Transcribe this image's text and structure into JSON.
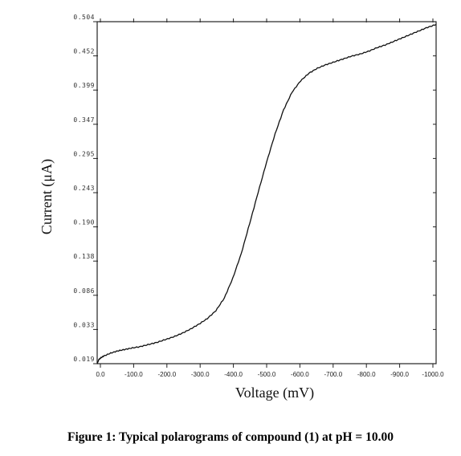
{
  "caption": "Figure 1: Typical polarograms of compound (1) at pH = 10.00",
  "chart_data": {
    "type": "line",
    "xlabel": "Voltage (mV)",
    "ylabel": "Current (μA)",
    "xlim": [
      0,
      -1000
    ],
    "ylim": [
      0.019,
      0.504
    ],
    "x_ticks": [
      "0.0",
      "-100.0",
      "-200.0",
      "-300.0",
      "-400.0",
      "-500.0",
      "-600.0",
      "-700.0",
      "-800.0",
      "-900.0",
      "-1000.0"
    ],
    "y_ticks": [
      "0.504",
      "0.452",
      "0.399",
      "0.347",
      "0.295",
      "0.243",
      "0.190",
      "0.138",
      "0.086",
      "0.033",
      "0.019"
    ],
    "grid": false,
    "series": [
      {
        "color": "#111111",
        "x": [
          0,
          -5,
          -10,
          -20,
          -40,
          -60,
          -80,
          -100,
          -125,
          -150,
          -175,
          -200,
          -225,
          -250,
          -275,
          -300,
          -325,
          -350,
          -375,
          -400,
          -425,
          -450,
          -475,
          -500,
          -525,
          -550,
          -575,
          -600,
          -625,
          -650,
          -675,
          -700,
          -725,
          -750,
          -775,
          -800,
          -825,
          -850,
          -875,
          -900,
          -925,
          -950,
          -975,
          -1000
        ],
        "y": [
          0.019,
          0.025,
          0.027,
          0.03,
          0.034,
          0.037,
          0.039,
          0.041,
          0.043,
          0.046,
          0.049,
          0.053,
          0.057,
          0.062,
          0.068,
          0.075,
          0.083,
          0.094,
          0.112,
          0.14,
          0.175,
          0.218,
          0.262,
          0.305,
          0.345,
          0.379,
          0.404,
          0.42,
          0.431,
          0.438,
          0.443,
          0.447,
          0.451,
          0.455,
          0.458,
          0.462,
          0.467,
          0.471,
          0.476,
          0.481,
          0.486,
          0.491,
          0.496,
          0.5
        ]
      }
    ]
  }
}
